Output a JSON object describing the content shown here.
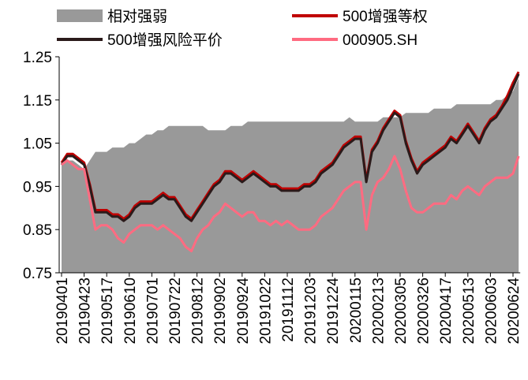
{
  "chart_data": {
    "type": "line",
    "categories": [
      "20190401",
      null,
      null,
      null,
      "20190423",
      null,
      null,
      null,
      "20190517",
      null,
      null,
      null,
      "20190610",
      null,
      null,
      null,
      "20190701",
      null,
      null,
      null,
      "20190722",
      null,
      null,
      null,
      "20190812",
      null,
      null,
      null,
      "20190902",
      null,
      null,
      null,
      "20190924",
      null,
      null,
      null,
      "20191022",
      null,
      null,
      null,
      "20191112",
      null,
      null,
      null,
      "20191203",
      null,
      null,
      null,
      "20191224",
      null,
      null,
      null,
      "20200115",
      null,
      null,
      null,
      "20200213",
      null,
      null,
      null,
      "20200305",
      null,
      null,
      null,
      "20200326",
      null,
      null,
      null,
      "20200417",
      null,
      null,
      null,
      "20200513",
      null,
      null,
      null,
      "20200603",
      null,
      null,
      null,
      "20200624",
      null
    ],
    "series": [
      {
        "name": "相对强弱",
        "type": "area",
        "color": "#999999",
        "values": [
          1.0,
          1.01,
          1.01,
          1.0,
          0.99,
          1.01,
          1.03,
          1.03,
          1.03,
          1.04,
          1.04,
          1.04,
          1.05,
          1.05,
          1.06,
          1.07,
          1.07,
          1.08,
          1.08,
          1.09,
          1.09,
          1.09,
          1.09,
          1.09,
          1.09,
          1.09,
          1.08,
          1.08,
          1.08,
          1.08,
          1.09,
          1.09,
          1.09,
          1.1,
          1.1,
          1.1,
          1.1,
          1.1,
          1.1,
          1.1,
          1.1,
          1.1,
          1.1,
          1.1,
          1.1,
          1.1,
          1.1,
          1.1,
          1.1,
          1.1,
          1.1,
          1.11,
          1.1,
          1.1,
          1.1,
          1.1,
          1.1,
          1.11,
          1.11,
          1.11,
          1.11,
          1.12,
          1.12,
          1.12,
          1.12,
          1.12,
          1.13,
          1.13,
          1.13,
          1.13,
          1.14,
          1.14,
          1.14,
          1.14,
          1.14,
          1.14,
          1.14,
          1.15,
          1.15,
          1.16,
          1.17,
          1.2
        ]
      },
      {
        "name": "500增强等权",
        "type": "line",
        "color": "#c00000",
        "values": [
          1.005,
          1.025,
          1.025,
          1.015,
          1.005,
          0.955,
          0.895,
          0.895,
          0.895,
          0.885,
          0.885,
          0.875,
          0.885,
          0.905,
          0.915,
          0.915,
          0.915,
          0.925,
          0.935,
          0.925,
          0.925,
          0.905,
          0.885,
          0.875,
          0.895,
          0.915,
          0.935,
          0.955,
          0.965,
          0.985,
          0.985,
          0.975,
          0.965,
          0.975,
          0.985,
          0.975,
          0.965,
          0.955,
          0.955,
          0.945,
          0.945,
          0.945,
          0.945,
          0.955,
          0.955,
          0.965,
          0.985,
          0.995,
          1.005,
          1.025,
          1.045,
          1.055,
          1.065,
          1.065,
          0.965,
          1.035,
          1.055,
          1.085,
          1.105,
          1.125,
          1.115,
          1.055,
          1.015,
          0.985,
          1.005,
          1.015,
          1.025,
          1.035,
          1.045,
          1.065,
          1.055,
          1.075,
          1.095,
          1.075,
          1.055,
          1.085,
          1.105,
          1.115,
          1.135,
          1.16,
          1.19,
          1.215
        ]
      },
      {
        "name": "500增强风险平价",
        "type": "line",
        "color": "#2b1a1a",
        "values": [
          1.0,
          1.02,
          1.02,
          1.01,
          1.0,
          0.95,
          0.89,
          0.89,
          0.89,
          0.88,
          0.88,
          0.87,
          0.88,
          0.9,
          0.91,
          0.91,
          0.91,
          0.92,
          0.93,
          0.92,
          0.92,
          0.9,
          0.88,
          0.87,
          0.89,
          0.91,
          0.93,
          0.95,
          0.96,
          0.98,
          0.98,
          0.97,
          0.96,
          0.97,
          0.98,
          0.97,
          0.96,
          0.95,
          0.95,
          0.94,
          0.94,
          0.94,
          0.94,
          0.95,
          0.95,
          0.96,
          0.98,
          0.99,
          1.0,
          1.02,
          1.04,
          1.05,
          1.06,
          1.06,
          0.96,
          1.03,
          1.05,
          1.08,
          1.1,
          1.12,
          1.11,
          1.05,
          1.01,
          0.98,
          1.0,
          1.01,
          1.02,
          1.03,
          1.04,
          1.06,
          1.05,
          1.07,
          1.09,
          1.07,
          1.05,
          1.08,
          1.1,
          1.11,
          1.13,
          1.15,
          1.18,
          1.21
        ]
      },
      {
        "name": "000905.SH",
        "type": "line",
        "color": "#ff6b81",
        "values": [
          1.0,
          1.01,
          1.0,
          0.99,
          0.99,
          0.92,
          0.85,
          0.86,
          0.86,
          0.85,
          0.83,
          0.82,
          0.84,
          0.85,
          0.86,
          0.86,
          0.86,
          0.85,
          0.86,
          0.85,
          0.84,
          0.83,
          0.81,
          0.8,
          0.83,
          0.85,
          0.86,
          0.88,
          0.89,
          0.91,
          0.9,
          0.89,
          0.88,
          0.89,
          0.89,
          0.87,
          0.87,
          0.86,
          0.87,
          0.86,
          0.87,
          0.86,
          0.85,
          0.85,
          0.85,
          0.86,
          0.88,
          0.89,
          0.9,
          0.92,
          0.94,
          0.95,
          0.96,
          0.96,
          0.85,
          0.93,
          0.96,
          0.97,
          0.99,
          1.02,
          0.99,
          0.94,
          0.9,
          0.89,
          0.89,
          0.9,
          0.91,
          0.91,
          0.91,
          0.93,
          0.92,
          0.94,
          0.95,
          0.94,
          0.93,
          0.95,
          0.96,
          0.97,
          0.97,
          0.97,
          0.98,
          1.02
        ]
      }
    ],
    "ylim": [
      0.75,
      1.25
    ],
    "yticks": [
      0.75,
      0.85,
      0.95,
      1.05,
      1.15,
      1.25
    ]
  }
}
